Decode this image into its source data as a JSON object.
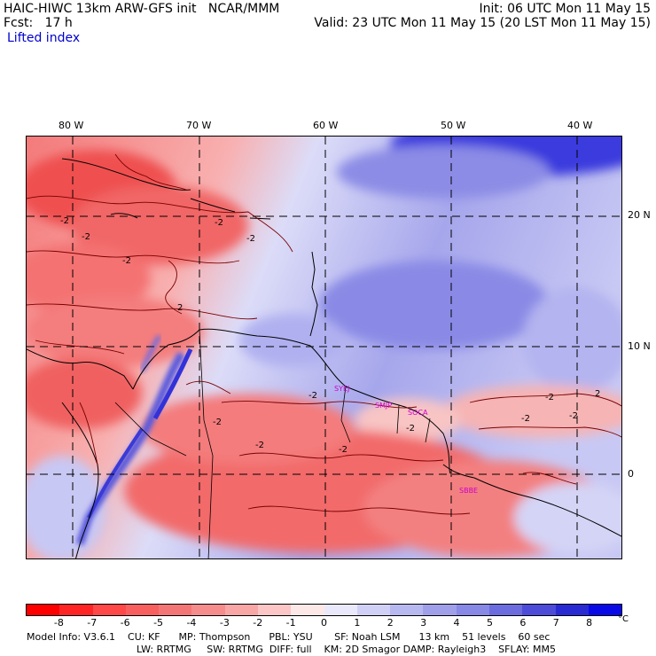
{
  "header": {
    "title_left": "HAIC-HIWC 13km ARW-GFS init   NCAR/MMM",
    "fcst": "Fcst:   17 h",
    "init": "Init: 06 UTC Mon 11 May 15",
    "valid": "Valid: 23 UTC Mon 11 May 15 (20 LST Mon 11 May 15)",
    "field": "Lifted index"
  },
  "axes": {
    "lon_labels": [
      "80 W",
      "70 W",
      "60 W",
      "50 W",
      "40 W"
    ],
    "lat_labels": [
      "20 N",
      "10 N",
      "0"
    ]
  },
  "stations": [
    "SYEJ",
    "SMJP",
    "SOCA",
    "SBBE"
  ],
  "contour_labels": [
    "-2",
    "-2",
    "-2",
    "-2",
    "-2",
    "2",
    "-2",
    "-2",
    "-2",
    "-2",
    "-2",
    "-2",
    "-2",
    "-2",
    "2"
  ],
  "colorbar": {
    "ticks": [
      "-8",
      "-7",
      "-6",
      "-5",
      "-4",
      "-3",
      "-2",
      "-1",
      "0",
      "1",
      "2",
      "3",
      "4",
      "5",
      "6",
      "7",
      "8"
    ],
    "unit": "°C",
    "colors": [
      "#ff0000",
      "#ff2525",
      "#ff4848",
      "#f86060",
      "#f47575",
      "#f68c8c",
      "#f8a6a6",
      "#fcc6c6",
      "#fde8e8",
      "#e9e9fb",
      "#d0d0f6",
      "#b8b8f0",
      "#a0a0ea",
      "#8888e6",
      "#6c6cde",
      "#4c4cd8",
      "#2a2ad2",
      "#0a0ae6"
    ]
  },
  "footer": {
    "line1": "Model Info: V3.6.1    CU: KF      MP: Thompson      PBL: YSU       SF: Noah LSM      13 km    51 levels    60 sec",
    "line2": "LW: RRTMG     SW: RRTMG  DIFF: full    KM: 2D Smagor DAMP: Rayleigh3    SFLAY: MM5"
  }
}
